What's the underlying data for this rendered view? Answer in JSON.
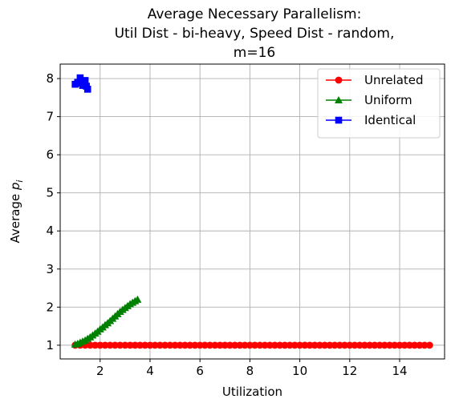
{
  "chart_data": {
    "type": "line",
    "title": [
      "Average Necessary Parallelism:",
      "Util Dist - bi-heavy, Speed Dist - random,",
      "m=16"
    ],
    "xlabel": "Utilization",
    "ylabel": "Average p_i",
    "ylabel_parts": {
      "base": "Average ",
      "var": "p",
      "sub": "i"
    },
    "xlim": [
      0.4,
      15.8
    ],
    "ylim": [
      0.64,
      8.38
    ],
    "xticks": [
      2,
      4,
      6,
      8,
      10,
      12,
      14
    ],
    "yticks": [
      1,
      2,
      3,
      4,
      5,
      6,
      7,
      8
    ],
    "grid": true,
    "legend_position": "top-right",
    "series": [
      {
        "name": "Unrelated",
        "color": "#ff0000",
        "marker": "circle",
        "x": [
          1.0,
          1.2,
          1.4,
          1.6,
          1.8,
          2.0,
          2.2,
          2.4,
          2.6,
          2.8,
          3.0,
          3.2,
          3.4,
          3.6,
          3.8,
          4.0,
          4.2,
          4.4,
          4.6,
          4.8,
          5.0,
          5.2,
          5.4,
          5.6,
          5.8,
          6.0,
          6.2,
          6.4,
          6.6,
          6.8,
          7.0,
          7.2,
          7.4,
          7.6,
          7.8,
          8.0,
          8.2,
          8.4,
          8.6,
          8.8,
          9.0,
          9.2,
          9.4,
          9.6,
          9.8,
          10.0,
          10.2,
          10.4,
          10.6,
          10.8,
          11.0,
          11.2,
          11.4,
          11.6,
          11.8,
          12.0,
          12.2,
          12.4,
          12.6,
          12.8,
          13.0,
          13.2,
          13.4,
          13.6,
          13.8,
          14.0,
          14.2,
          14.4,
          14.6,
          14.8,
          15.0,
          15.2
        ],
        "y": [
          1.0,
          1.0,
          1.0,
          1.0,
          1.0,
          1.0,
          1.0,
          1.0,
          1.0,
          1.0,
          1.0,
          1.0,
          1.0,
          1.0,
          1.0,
          1.0,
          1.0,
          1.0,
          1.0,
          1.0,
          1.0,
          1.0,
          1.0,
          1.0,
          1.0,
          1.0,
          1.0,
          1.0,
          1.0,
          1.0,
          1.0,
          1.0,
          1.0,
          1.0,
          1.0,
          1.0,
          1.0,
          1.0,
          1.0,
          1.0,
          1.0,
          1.0,
          1.0,
          1.0,
          1.0,
          1.0,
          1.0,
          1.0,
          1.0,
          1.0,
          1.0,
          1.0,
          1.0,
          1.0,
          1.0,
          1.0,
          1.0,
          1.0,
          1.0,
          1.0,
          1.0,
          1.0,
          1.0,
          1.0,
          1.0,
          1.0,
          1.0,
          1.0,
          1.0,
          1.0,
          1.0,
          1.0
        ]
      },
      {
        "name": "Uniform",
        "color": "#008000",
        "marker": "triangle",
        "x": [
          1.0,
          1.1,
          1.2,
          1.3,
          1.4,
          1.5,
          1.6,
          1.7,
          1.8,
          1.9,
          2.0,
          2.1,
          2.2,
          2.3,
          2.4,
          2.5,
          2.6,
          2.7,
          2.8,
          2.9,
          3.0,
          3.1,
          3.2,
          3.3,
          3.4,
          3.5
        ],
        "y": [
          1.02,
          1.04,
          1.07,
          1.1,
          1.13,
          1.17,
          1.21,
          1.26,
          1.31,
          1.36,
          1.42,
          1.47,
          1.53,
          1.58,
          1.64,
          1.7,
          1.76,
          1.82,
          1.88,
          1.93,
          1.98,
          2.03,
          2.08,
          2.12,
          2.16,
          2.2
        ]
      },
      {
        "name": "Identical",
        "color": "#0000ff",
        "marker": "square",
        "x": [
          1.0,
          1.1,
          1.2,
          1.25,
          1.3,
          1.4,
          1.45,
          1.5
        ],
        "y": [
          7.85,
          7.9,
          8.02,
          7.88,
          7.82,
          7.95,
          7.8,
          7.72
        ]
      }
    ]
  }
}
